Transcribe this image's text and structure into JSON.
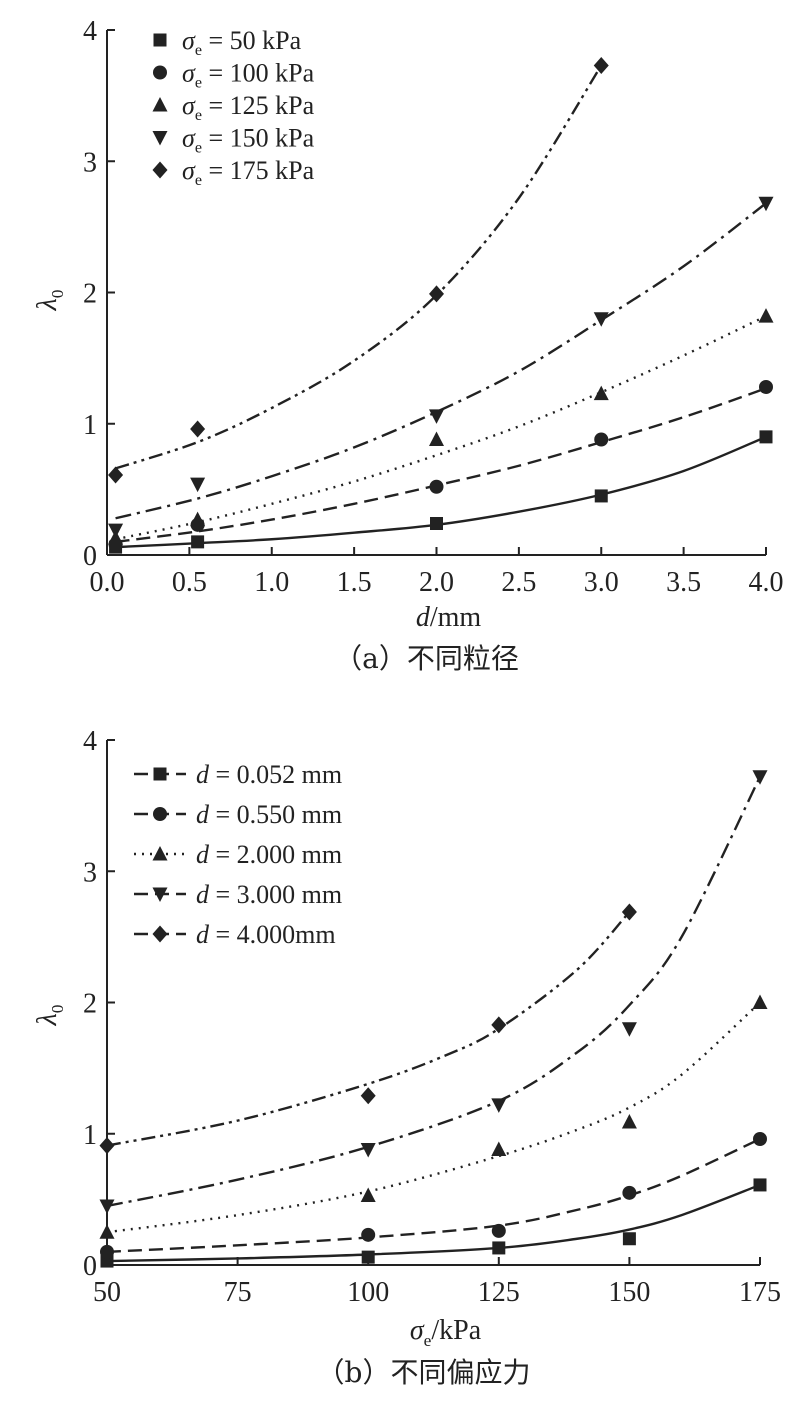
{
  "chart_data": [
    {
      "type": "scatter",
      "caption": "（a）不同粒径",
      "xlabel_var": "d",
      "xlabel_unit": "/mm",
      "ylabel_var": "λ",
      "ylabel_sub": "0",
      "xlim": [
        0,
        4
      ],
      "ylim": [
        0,
        4
      ],
      "xticks": [
        "0.0",
        "0.5",
        "1.0",
        "1.5",
        "2.0",
        "2.5",
        "3.0",
        "3.5",
        "4.0"
      ],
      "xtick_values": [
        0,
        0.5,
        1.0,
        1.5,
        2.0,
        2.5,
        3.0,
        3.5,
        4.0
      ],
      "yticks": [
        "0",
        "1",
        "2",
        "3",
        "4"
      ],
      "ytick_values": [
        0,
        1,
        2,
        3,
        4
      ],
      "legend_position": "top-left",
      "series": [
        {
          "legend_var": "σ",
          "legend_sub": "e",
          "legend_value": " = 50 kPa",
          "marker": "square",
          "dash": "solid",
          "x": [
            0.052,
            0.55,
            2.0,
            3.0,
            4.0
          ],
          "y": [
            0.06,
            0.1,
            0.24,
            0.45,
            0.9
          ],
          "fit_x": [
            0.052,
            0.55,
            1.0,
            1.5,
            2.0,
            2.5,
            3.0,
            3.5,
            4.0
          ],
          "fit_y": [
            0.06,
            0.09,
            0.12,
            0.17,
            0.23,
            0.33,
            0.46,
            0.64,
            0.9
          ]
        },
        {
          "legend_var": "σ",
          "legend_sub": "e",
          "legend_value": " = 100 kPa",
          "marker": "circle",
          "dash": "dashed",
          "x": [
            0.052,
            0.55,
            2.0,
            3.0,
            4.0
          ],
          "y": [
            0.08,
            0.23,
            0.52,
            0.88,
            1.28
          ],
          "fit_x": [
            0.052,
            0.55,
            1.0,
            1.5,
            2.0,
            2.5,
            3.0,
            3.5,
            4.0
          ],
          "fit_y": [
            0.1,
            0.18,
            0.27,
            0.39,
            0.53,
            0.68,
            0.86,
            1.05,
            1.27
          ]
        },
        {
          "legend_var": "σ",
          "legend_sub": "e",
          "legend_value": " = 125 kPa",
          "marker": "triangle-up",
          "dash": "dotted",
          "x": [
            0.052,
            0.55,
            2.0,
            3.0,
            4.0
          ],
          "y": [
            0.13,
            0.27,
            0.88,
            1.23,
            1.82
          ],
          "fit_x": [
            0.052,
            0.55,
            1.0,
            1.5,
            2.0,
            2.5,
            3.0,
            3.5,
            4.0
          ],
          "fit_y": [
            0.12,
            0.25,
            0.39,
            0.56,
            0.76,
            0.98,
            1.24,
            1.52,
            1.82
          ]
        },
        {
          "legend_var": "σ",
          "legend_sub": "e",
          "legend_value": " = 150 kPa",
          "marker": "triangle-down",
          "dash": "dashdot",
          "x": [
            0.052,
            0.55,
            2.0,
            3.0,
            4.0
          ],
          "y": [
            0.19,
            0.54,
            1.06,
            1.8,
            2.68
          ],
          "fit_x": [
            0.052,
            0.55,
            1.0,
            1.5,
            2.0,
            2.5,
            3.0,
            3.5,
            4.0
          ],
          "fit_y": [
            0.28,
            0.43,
            0.6,
            0.82,
            1.09,
            1.4,
            1.79,
            2.2,
            2.68
          ]
        },
        {
          "legend_var": "σ",
          "legend_sub": "e",
          "legend_value": " = 175 kPa",
          "marker": "diamond",
          "dash": "dashdotdot",
          "x": [
            0.052,
            0.55,
            2.0,
            3.0
          ],
          "y": [
            0.61,
            0.96,
            1.99,
            3.73
          ],
          "fit_x": [
            0.052,
            0.55,
            1.0,
            1.5,
            2.0,
            2.5,
            3.0
          ],
          "fit_y": [
            0.66,
            0.86,
            1.12,
            1.48,
            1.98,
            2.72,
            3.73
          ]
        }
      ]
    },
    {
      "type": "scatter",
      "caption": "（b）不同偏应力",
      "xlabel_var": "σ",
      "xlabel_sub": "e",
      "xlabel_unit": "/kPa",
      "ylabel_var": "λ",
      "ylabel_sub": "0",
      "xlim": [
        50,
        175
      ],
      "ylim": [
        0,
        4
      ],
      "xticks": [
        "50",
        "75",
        "100",
        "125",
        "150",
        "175"
      ],
      "xtick_values": [
        50,
        75,
        100,
        125,
        150,
        175
      ],
      "yticks": [
        "0",
        "1",
        "2",
        "3",
        "4"
      ],
      "ytick_values": [
        0,
        1,
        2,
        3,
        4
      ],
      "legend_position": "top-left",
      "series": [
        {
          "legend_var": "d",
          "legend_value": " = 0.052 mm",
          "marker": "square",
          "dash": "solid",
          "legend_dash": "dashed",
          "x": [
            50,
            100,
            125,
            150,
            175
          ],
          "y": [
            0.03,
            0.06,
            0.13,
            0.2,
            0.61
          ],
          "fit_x": [
            50,
            75,
            100,
            125,
            140,
            150,
            160,
            175
          ],
          "fit_y": [
            0.03,
            0.05,
            0.08,
            0.13,
            0.2,
            0.27,
            0.38,
            0.61
          ]
        },
        {
          "legend_var": "d",
          "legend_value": " = 0.550 mm",
          "marker": "circle",
          "dash": "dashed",
          "legend_dash": "dashed",
          "x": [
            50,
            100,
            125,
            150,
            175
          ],
          "y": [
            0.1,
            0.23,
            0.26,
            0.55,
            0.96
          ],
          "fit_x": [
            50,
            75,
            100,
            125,
            140,
            150,
            160,
            175
          ],
          "fit_y": [
            0.1,
            0.15,
            0.21,
            0.3,
            0.42,
            0.53,
            0.68,
            0.96
          ]
        },
        {
          "legend_var": "d",
          "legend_value": " = 2.000 mm",
          "marker": "triangle-up",
          "dash": "dotted",
          "legend_dash": "dotted",
          "x": [
            50,
            100,
            125,
            150,
            175
          ],
          "y": [
            0.25,
            0.53,
            0.88,
            1.09,
            2.0
          ],
          "fit_x": [
            50,
            75,
            100,
            125,
            140,
            150,
            160,
            175
          ],
          "fit_y": [
            0.25,
            0.38,
            0.56,
            0.83,
            1.03,
            1.2,
            1.45,
            2.0
          ]
        },
        {
          "legend_var": "d",
          "legend_value": " = 3.000 mm",
          "marker": "triangle-down",
          "dash": "dashdot",
          "legend_dash": "dashed",
          "x": [
            50,
            100,
            125,
            150,
            175
          ],
          "y": [
            0.45,
            0.88,
            1.22,
            1.8,
            3.72
          ],
          "fit_x": [
            50,
            75,
            100,
            125,
            140,
            150,
            160,
            175
          ],
          "fit_y": [
            0.45,
            0.65,
            0.9,
            1.25,
            1.62,
            1.98,
            2.5,
            3.72
          ]
        },
        {
          "legend_var": "d",
          "legend_value": " = 4.000mm",
          "marker": "diamond",
          "dash": "dashdotdot",
          "legend_dash": "dashed",
          "x": [
            50,
            100,
            125,
            150
          ],
          "y": [
            0.91,
            1.29,
            1.83,
            2.69
          ],
          "fit_x": [
            50,
            75,
            100,
            115,
            125,
            140,
            150
          ],
          "fit_y": [
            0.91,
            1.1,
            1.38,
            1.6,
            1.8,
            2.25,
            2.69
          ]
        }
      ]
    }
  ]
}
